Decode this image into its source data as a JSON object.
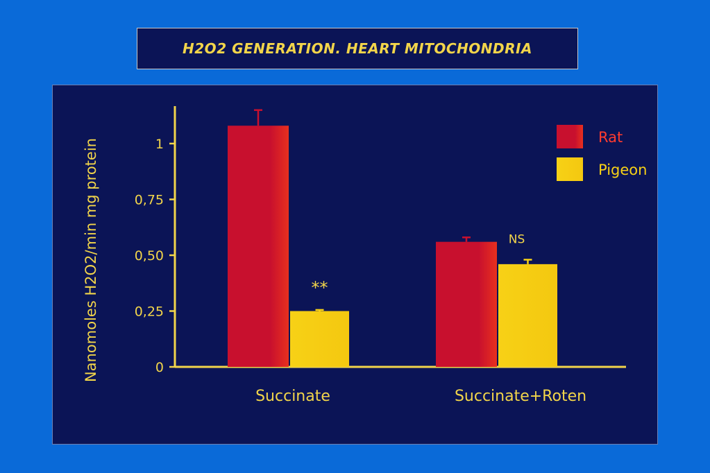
{
  "slide": {
    "title": "H2O2 GENERATION. HEART MITOCHONDRIA"
  },
  "chart_data": {
    "type": "bar",
    "title": "",
    "xlabel": "",
    "ylabel": "Nanomoles H2O2/min mg protein",
    "ylim": [
      0,
      1.25
    ],
    "yticks": [
      0,
      0.25,
      0.5,
      0.75,
      1
    ],
    "ytick_labels": [
      "0",
      "0,25",
      "0,50",
      "0,75",
      "1"
    ],
    "categories": [
      "Succinate",
      "Succinate+Roten"
    ],
    "series": [
      {
        "name": "Rat",
        "color": "#c8102e",
        "values": [
          1.08,
          0.56
        ],
        "errors": [
          0.07,
          0.02
        ]
      },
      {
        "name": "Pigeon",
        "color": "#f7d116",
        "values": [
          0.25,
          0.46
        ],
        "errors": [
          0.005,
          0.02
        ]
      }
    ],
    "annotations": [
      {
        "category": 0,
        "series": 1,
        "text": "**"
      },
      {
        "category": 1,
        "series": 1,
        "text": "NS"
      }
    ],
    "legend": {
      "position": "top-right",
      "text_colors": [
        "#ff3b2f",
        "#f7d116"
      ]
    },
    "grid": false,
    "colors": {
      "axis": "#f2d54a",
      "background": "#0b1456"
    }
  }
}
